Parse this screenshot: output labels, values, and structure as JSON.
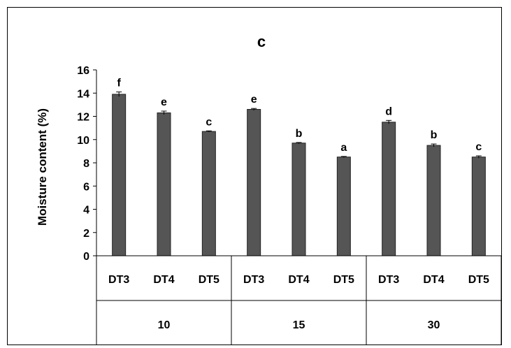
{
  "chart_data": {
    "type": "bar",
    "title": "c",
    "ylabel": "Moisture content (%)",
    "xlabel": "",
    "ylim": [
      0,
      16
    ],
    "yticks": [
      0,
      2,
      4,
      6,
      8,
      10,
      12,
      14,
      16
    ],
    "grid": false,
    "legend": "none",
    "groups": [
      "10",
      "15",
      "30"
    ],
    "categories": [
      "DT3",
      "DT4",
      "DT5",
      "DT3",
      "DT4",
      "DT5",
      "DT3",
      "DT4",
      "DT5"
    ],
    "values": [
      13.9,
      12.3,
      10.7,
      12.6,
      9.7,
      8.5,
      11.5,
      9.5,
      8.5
    ],
    "errors": [
      0.2,
      0.15,
      0.05,
      0.08,
      0.05,
      0.05,
      0.15,
      0.12,
      0.1
    ],
    "significance_letters": [
      "f",
      "e",
      "c",
      "e",
      "b",
      "a",
      "d",
      "b",
      "c"
    ],
    "bar_color": "#555555"
  }
}
